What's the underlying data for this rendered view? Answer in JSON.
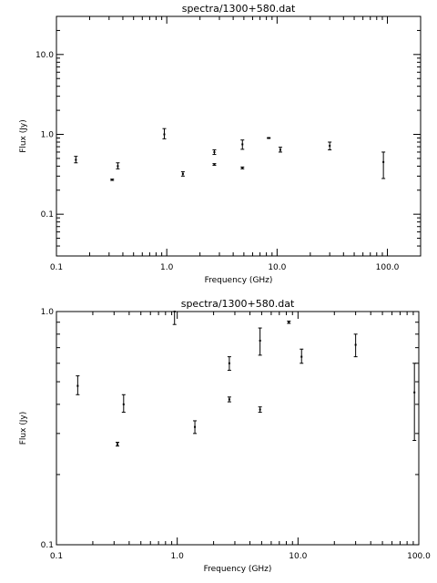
{
  "chart_data": [
    {
      "type": "scatter",
      "title": "spectra/1300+580.dat",
      "xlabel": "Frequency (GHz)",
      "ylabel": "Flux (Jy)",
      "xscale": "log",
      "yscale": "log",
      "xlim": [
        0.1,
        200
      ],
      "ylim": [
        0.03,
        30
      ],
      "x_ticks": [
        0.1,
        1.0,
        10.0,
        100.0
      ],
      "x_tick_labels": [
        "0.1",
        "1.0",
        "10.0",
        "100.0"
      ],
      "y_ticks": [
        0.1,
        1.0,
        10.0
      ],
      "y_tick_labels": [
        "0.1",
        "1.0",
        "10.0"
      ],
      "points": [
        {
          "x": 0.15,
          "y": 0.48,
          "lo": 0.44,
          "hi": 0.53
        },
        {
          "x": 0.32,
          "y": 0.27,
          "lo": 0.265,
          "hi": 0.275
        },
        {
          "x": 0.36,
          "y": 0.4,
          "lo": 0.37,
          "hi": 0.44
        },
        {
          "x": 0.95,
          "y": 1.0,
          "lo": 0.88,
          "hi": 1.18
        },
        {
          "x": 1.4,
          "y": 0.32,
          "lo": 0.3,
          "hi": 0.34
        },
        {
          "x": 2.7,
          "y": 0.42,
          "lo": 0.41,
          "hi": 0.43
        },
        {
          "x": 2.7,
          "y": 0.6,
          "lo": 0.56,
          "hi": 0.64
        },
        {
          "x": 4.85,
          "y": 0.38,
          "lo": 0.37,
          "hi": 0.39
        },
        {
          "x": 4.85,
          "y": 0.75,
          "lo": 0.65,
          "hi": 0.85
        },
        {
          "x": 8.4,
          "y": 0.9,
          "lo": 0.89,
          "hi": 0.91
        },
        {
          "x": 10.7,
          "y": 0.64,
          "lo": 0.6,
          "hi": 0.69
        },
        {
          "x": 30.0,
          "y": 0.72,
          "lo": 0.64,
          "hi": 0.8
        },
        {
          "x": 92.0,
          "y": 0.45,
          "lo": 0.28,
          "hi": 0.6
        }
      ]
    },
    {
      "type": "scatter",
      "title": "spectra/1300+580.dat",
      "xlabel": "Frequency (GHz)",
      "ylabel": "Flux (Jy)",
      "xscale": "log",
      "yscale": "log",
      "xlim": [
        0.1,
        100
      ],
      "ylim": [
        0.1,
        1.0
      ],
      "x_ticks": [
        0.1,
        1.0,
        10.0,
        100.0
      ],
      "x_tick_labels": [
        "0.1",
        "1.0",
        "10.0",
        "100.0"
      ],
      "y_ticks": [
        0.1,
        1.0
      ],
      "y_tick_labels": [
        "0.1",
        "1.0"
      ],
      "points": [
        {
          "x": 0.15,
          "y": 0.48,
          "lo": 0.44,
          "hi": 0.53
        },
        {
          "x": 0.32,
          "y": 0.27,
          "lo": 0.265,
          "hi": 0.275
        },
        {
          "x": 0.36,
          "y": 0.4,
          "lo": 0.37,
          "hi": 0.44
        },
        {
          "x": 0.95,
          "y": 1.0,
          "lo": 0.88,
          "hi": 1.18
        },
        {
          "x": 1.4,
          "y": 0.32,
          "lo": 0.3,
          "hi": 0.34
        },
        {
          "x": 2.7,
          "y": 0.42,
          "lo": 0.41,
          "hi": 0.43
        },
        {
          "x": 2.7,
          "y": 0.6,
          "lo": 0.56,
          "hi": 0.64
        },
        {
          "x": 4.85,
          "y": 0.38,
          "lo": 0.37,
          "hi": 0.39
        },
        {
          "x": 4.85,
          "y": 0.75,
          "lo": 0.65,
          "hi": 0.85
        },
        {
          "x": 8.4,
          "y": 0.9,
          "lo": 0.89,
          "hi": 0.91
        },
        {
          "x": 10.7,
          "y": 0.64,
          "lo": 0.6,
          "hi": 0.69
        },
        {
          "x": 30.0,
          "y": 0.72,
          "lo": 0.64,
          "hi": 0.8
        },
        {
          "x": 92.0,
          "y": 0.45,
          "lo": 0.28,
          "hi": 0.6
        }
      ]
    }
  ]
}
